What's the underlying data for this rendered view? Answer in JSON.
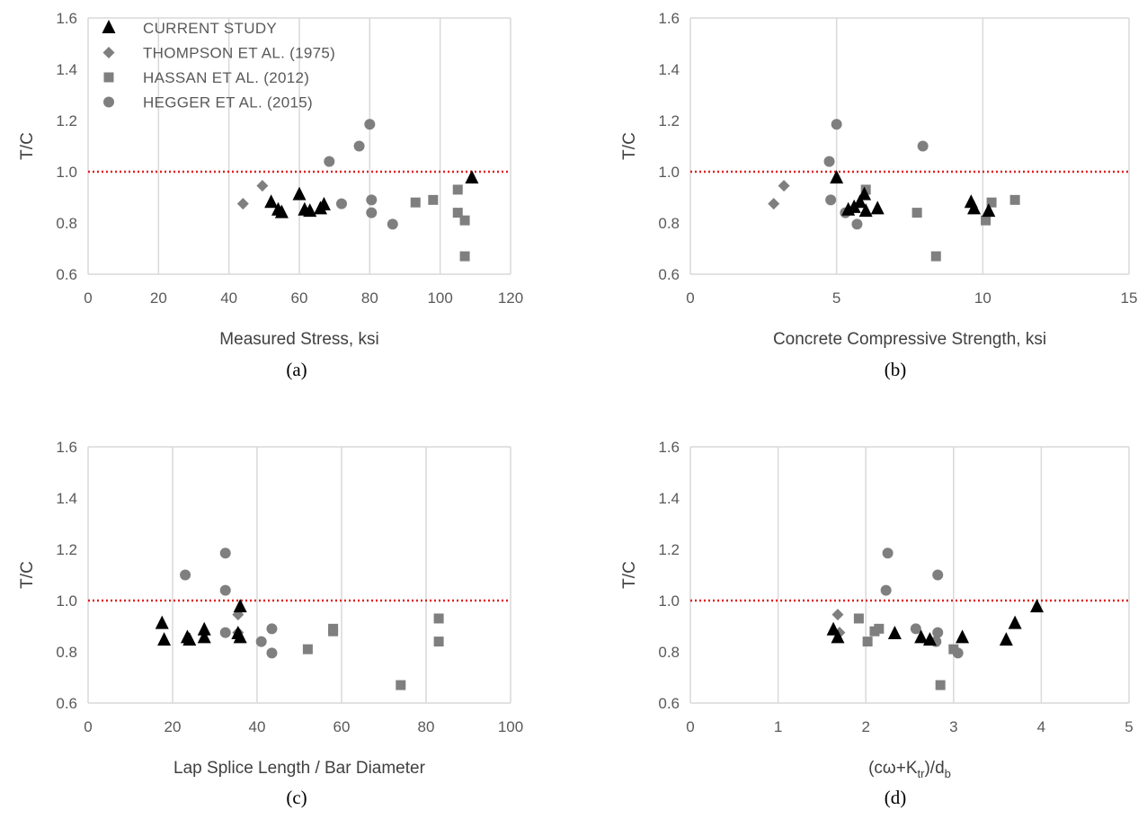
{
  "legend": {
    "entries": [
      {
        "series": "current",
        "label": "CURRENT STUDY"
      },
      {
        "series": "thompson",
        "label": "THOMPSON ET AL. (1975)"
      },
      {
        "series": "hassan",
        "label": "HASSAN ET AL. (2012)"
      },
      {
        "series": "hegger",
        "label": "HEGGER ET AL. (2015)"
      }
    ]
  },
  "colors": {
    "current": "#000000",
    "thompson": "#7f7f7f",
    "hassan": "#7f7f7f",
    "hegger": "#7f7f7f",
    "reference_line": "#e02020",
    "grid": "#d9d9d9",
    "tick_text": "#595959"
  },
  "markers": {
    "current": "triangle",
    "thompson": "diamond",
    "hassan": "square",
    "hegger": "circle"
  },
  "chart_data": [
    {
      "type": "scatter",
      "caption": "(a)",
      "xlabel": "Measured Stress, ksi",
      "ylabel": "T/C",
      "xlim": [
        0,
        120
      ],
      "ylim": [
        0.6,
        1.6
      ],
      "xticks": [
        0,
        20,
        40,
        60,
        80,
        100,
        120
      ],
      "yticks": [
        0.6,
        0.8,
        1.0,
        1.2,
        1.4,
        1.6
      ],
      "grid": "vertical",
      "legend_placement": "top-left",
      "reference_line": 1.0,
      "series": [
        {
          "name": "CURRENT STUDY",
          "key": "current",
          "points": [
            [
              52,
              0.88
            ],
            [
              54,
              0.85
            ],
            [
              55,
              0.84
            ],
            [
              60,
              0.91
            ],
            [
              61.5,
              0.85
            ],
            [
              63,
              0.845
            ],
            [
              66,
              0.855
            ],
            [
              67,
              0.87
            ],
            [
              109,
              0.975
            ]
          ]
        },
        {
          "name": "THOMPSON ET AL. (1975)",
          "key": "thompson",
          "points": [
            [
              44,
              0.875
            ],
            [
              49.5,
              0.945
            ]
          ]
        },
        {
          "name": "HASSAN ET AL. (2012)",
          "key": "hassan",
          "points": [
            [
              93,
              0.88
            ],
            [
              98,
              0.89
            ],
            [
              105,
              0.93
            ],
            [
              105,
              0.84
            ],
            [
              107,
              0.81
            ],
            [
              107,
              0.67
            ]
          ]
        },
        {
          "name": "HEGGER ET AL. (2015)",
          "key": "hegger",
          "points": [
            [
              68.5,
              1.04
            ],
            [
              72,
              0.875
            ],
            [
              77,
              1.1
            ],
            [
              80,
              1.185
            ],
            [
              80.5,
              0.89
            ],
            [
              80.5,
              0.84
            ],
            [
              86.5,
              0.795
            ]
          ]
        }
      ]
    },
    {
      "type": "scatter",
      "caption": "(b)",
      "xlabel": "Concrete Compressive Strength, ksi",
      "ylabel": "T/C",
      "xlim": [
        0,
        15
      ],
      "ylim": [
        0.6,
        1.6
      ],
      "xticks": [
        0,
        5,
        10,
        15
      ],
      "yticks": [
        0.6,
        0.8,
        1.0,
        1.2,
        1.4,
        1.6
      ],
      "grid": "vertical",
      "reference_line": 1.0,
      "series": [
        {
          "name": "CURRENT STUDY",
          "key": "current",
          "points": [
            [
              5.0,
              0.975
            ],
            [
              5.4,
              0.85
            ],
            [
              5.6,
              0.86
            ],
            [
              5.8,
              0.88
            ],
            [
              5.95,
              0.91
            ],
            [
              6.0,
              0.845
            ],
            [
              6.4,
              0.855
            ],
            [
              9.6,
              0.88
            ],
            [
              9.7,
              0.855
            ],
            [
              10.2,
              0.845
            ]
          ]
        },
        {
          "name": "THOMPSON ET AL. (1975)",
          "key": "thompson",
          "points": [
            [
              2.85,
              0.875
            ],
            [
              3.2,
              0.945
            ]
          ]
        },
        {
          "name": "HASSAN ET AL. (2012)",
          "key": "hassan",
          "points": [
            [
              6.0,
              0.93
            ],
            [
              7.75,
              0.84
            ],
            [
              8.4,
              0.67
            ],
            [
              10.1,
              0.81
            ],
            [
              10.3,
              0.88
            ],
            [
              11.1,
              0.89
            ]
          ]
        },
        {
          "name": "HEGGER ET AL. (2015)",
          "key": "hegger",
          "points": [
            [
              4.75,
              1.04
            ],
            [
              4.8,
              0.89
            ],
            [
              5.0,
              1.185
            ],
            [
              5.3,
              0.84
            ],
            [
              5.7,
              0.795
            ],
            [
              7.95,
              1.1
            ]
          ]
        }
      ]
    },
    {
      "type": "scatter",
      "caption": "(c)",
      "xlabel": "Lap Splice Length / Bar Diameter",
      "ylabel": "T/C",
      "xlim": [
        0,
        100
      ],
      "ylim": [
        0.6,
        1.6
      ],
      "xticks": [
        0,
        20,
        40,
        60,
        80,
        100
      ],
      "yticks": [
        0.6,
        0.8,
        1.0,
        1.2,
        1.4,
        1.6
      ],
      "grid": "vertical",
      "reference_line": 1.0,
      "series": [
        {
          "name": "CURRENT STUDY",
          "key": "current",
          "points": [
            [
              17.5,
              0.91
            ],
            [
              18,
              0.845
            ],
            [
              23.5,
              0.855
            ],
            [
              24,
              0.845
            ],
            [
              27.5,
              0.885
            ],
            [
              27.5,
              0.855
            ],
            [
              35.5,
              0.87
            ],
            [
              36,
              0.855
            ],
            [
              36,
              0.975
            ]
          ]
        },
        {
          "name": "THOMPSON ET AL. (1975)",
          "key": "thompson",
          "points": [
            [
              35.5,
              0.875
            ],
            [
              35.5,
              0.945
            ]
          ]
        },
        {
          "name": "HASSAN ET AL. (2012)",
          "key": "hassan",
          "points": [
            [
              52,
              0.81
            ],
            [
              58,
              0.89
            ],
            [
              58,
              0.88
            ],
            [
              74,
              0.67
            ],
            [
              83,
              0.93
            ],
            [
              83,
              0.84
            ]
          ]
        },
        {
          "name": "HEGGER ET AL. (2015)",
          "key": "hegger",
          "points": [
            [
              23,
              1.1
            ],
            [
              32.5,
              1.185
            ],
            [
              32.5,
              1.04
            ],
            [
              32.5,
              0.875
            ],
            [
              41,
              0.84
            ],
            [
              43.5,
              0.89
            ],
            [
              43.5,
              0.795
            ]
          ]
        }
      ]
    },
    {
      "type": "scatter",
      "caption": "(d)",
      "xlabel": "(cω+Ktr)/db",
      "xlabel_parts": {
        "open": "(cω+K",
        "sub1": "tr",
        "mid": ")/d",
        "sub2": "b"
      },
      "ylabel": "T/C",
      "xlim": [
        0,
        5
      ],
      "ylim": [
        0.6,
        1.6
      ],
      "xticks": [
        0,
        1,
        2,
        3,
        4,
        5
      ],
      "yticks": [
        0.6,
        0.8,
        1.0,
        1.2,
        1.4,
        1.6
      ],
      "grid": "vertical",
      "reference_line": 1.0,
      "series": [
        {
          "name": "CURRENT STUDY",
          "key": "current",
          "points": [
            [
              1.63,
              0.885
            ],
            [
              1.68,
              0.855
            ],
            [
              2.33,
              0.87
            ],
            [
              2.63,
              0.855
            ],
            [
              2.73,
              0.845
            ],
            [
              3.1,
              0.855
            ],
            [
              3.6,
              0.845
            ],
            [
              3.7,
              0.91
            ],
            [
              3.95,
              0.975
            ]
          ]
        },
        {
          "name": "THOMPSON ET AL. (1975)",
          "key": "thompson",
          "points": [
            [
              1.68,
              0.945
            ],
            [
              1.7,
              0.875
            ]
          ]
        },
        {
          "name": "HASSAN ET AL. (2012)",
          "key": "hassan",
          "points": [
            [
              1.92,
              0.93
            ],
            [
              2.02,
              0.84
            ],
            [
              2.1,
              0.88
            ],
            [
              2.15,
              0.89
            ],
            [
              2.85,
              0.67
            ],
            [
              3.0,
              0.81
            ]
          ]
        },
        {
          "name": "HEGGER ET AL. (2015)",
          "key": "hegger",
          "points": [
            [
              2.23,
              1.04
            ],
            [
              2.25,
              1.185
            ],
            [
              2.57,
              0.89
            ],
            [
              2.82,
              1.1
            ],
            [
              2.82,
              0.875
            ],
            [
              2.8,
              0.84
            ],
            [
              3.05,
              0.795
            ]
          ]
        }
      ]
    }
  ]
}
